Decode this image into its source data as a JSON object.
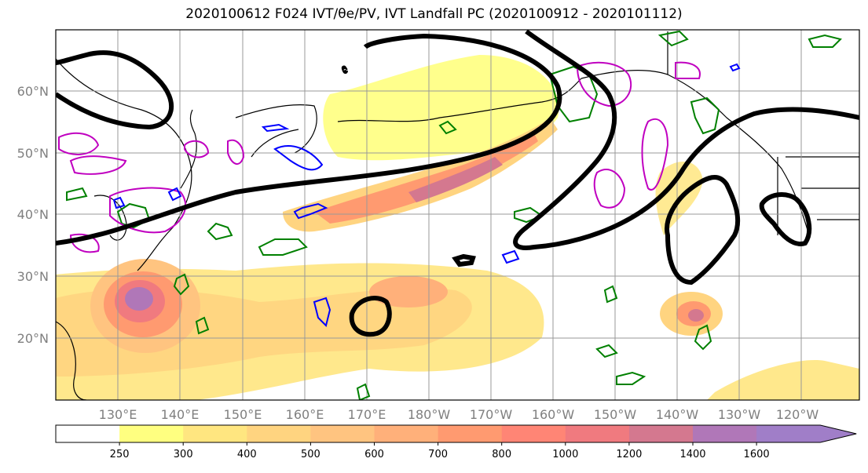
{
  "title": "2020100612 F024 IVT/θe/PV, IVT Landfall PC (2020100912 - 2020101112)",
  "lon_labels": [
    "130°E",
    "140°E",
    "150°E",
    "160°E",
    "170°E",
    "180°W",
    "170°W",
    "160°W",
    "150°W",
    "140°W",
    "130°W",
    "120°W"
  ],
  "lat_labels": [
    "60°N",
    "50°N",
    "40°N",
    "30°N",
    "20°N"
  ],
  "colorbar": {
    "labels": [
      "250",
      "300",
      "400",
      "500",
      "600",
      "700",
      "800",
      "1000",
      "1200",
      "1400",
      "1600"
    ],
    "colors": [
      "#ffffff",
      "#ffff80",
      "#ffe680",
      "#ffd480",
      "#ffc480",
      "#ffb07a",
      "#ff9a70",
      "#ff8575",
      "#f07a7f",
      "#d4788f",
      "#b077b8",
      "#a07ec8"
    ]
  },
  "contour_colors": {
    "pc": "#000000",
    "theta_e": "#008000",
    "pv_magenta": "#c000c0",
    "pv_blue": "#0000ff"
  }
}
